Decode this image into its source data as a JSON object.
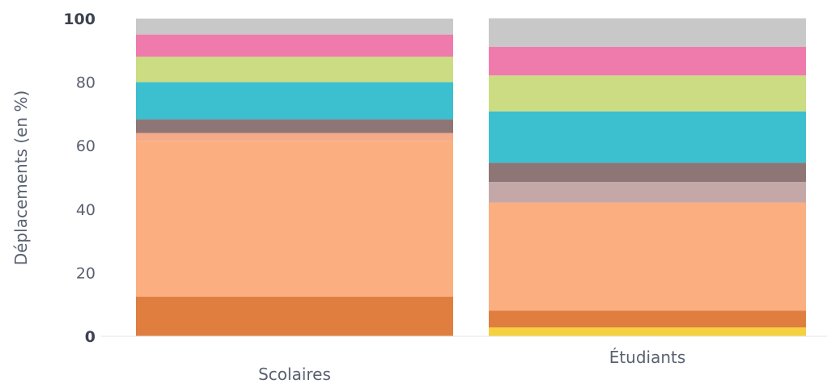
{
  "chart_data": {
    "type": "bar",
    "stacked": true,
    "orientation": "vertical",
    "categories": [
      "Scolaires",
      "Étudiants"
    ],
    "ylabel": "Déplacements (en %)",
    "ylim": [
      0,
      100
    ],
    "yticks": [
      0,
      20,
      40,
      60,
      80,
      100
    ],
    "grid": false,
    "series": [
      {
        "color": "#f5d040",
        "values": [
          0.0,
          2.8
        ]
      },
      {
        "color": "#e07e3f",
        "values": [
          12.5,
          5.3
        ]
      },
      {
        "color": "#fbaf80",
        "values": [
          49.0,
          34.0
        ]
      },
      {
        "color": "#f4ab8a",
        "values": [
          2.5,
          0.0
        ]
      },
      {
        "color": "#c4a8a8",
        "values": [
          0.0,
          6.5
        ]
      },
      {
        "color": "#8f7676",
        "values": [
          4.3,
          6.0
        ]
      },
      {
        "color": "#3cc0cf",
        "values": [
          11.7,
          16.2
        ]
      },
      {
        "color": "#cbdc82",
        "values": [
          8.0,
          11.3
        ]
      },
      {
        "color": "#ef7bad",
        "values": [
          7.0,
          9.0
        ]
      },
      {
        "color": "#c8c8c8",
        "values": [
          5.0,
          9.0
        ]
      }
    ]
  }
}
